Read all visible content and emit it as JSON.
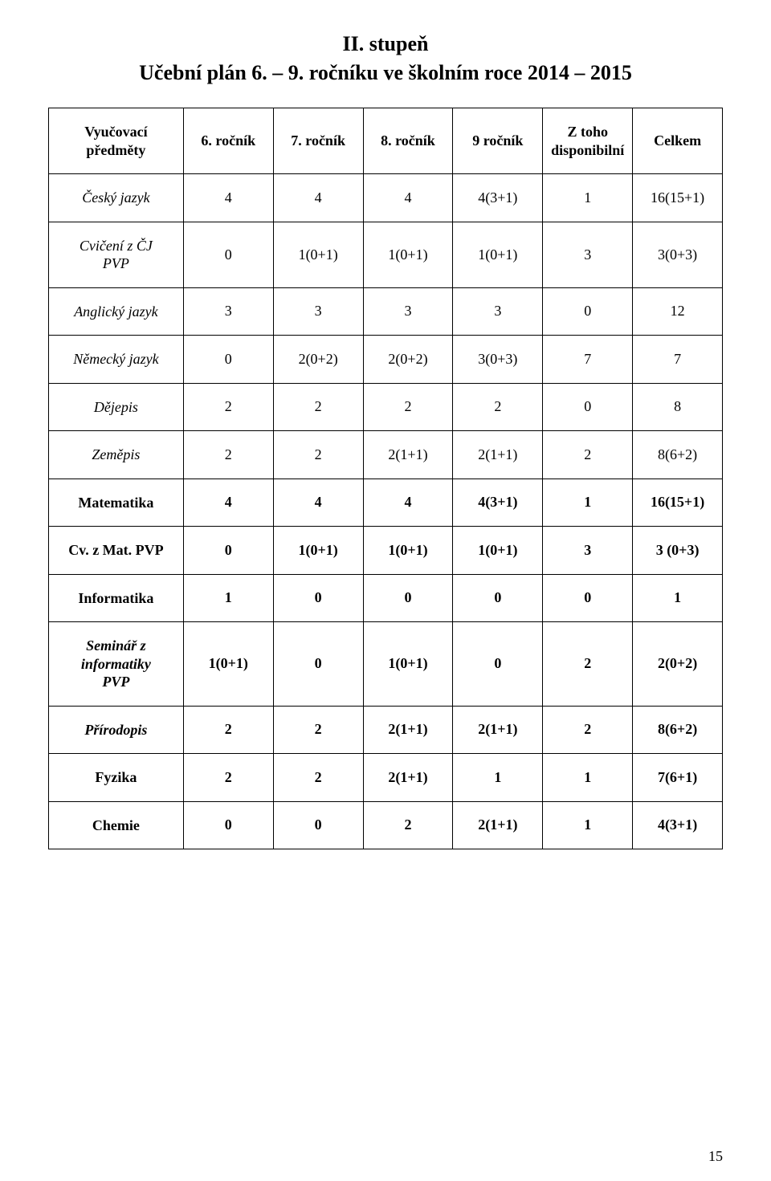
{
  "page": {
    "title": "II. stupeň",
    "subtitle": "Učební plán 6. – 9. ročníku ve školním roce  2014 – 2015",
    "page_number": "15"
  },
  "table": {
    "columns": [
      {
        "label_line1": "Vyučovací",
        "label_line2": "předměty"
      },
      {
        "label": "6. ročník"
      },
      {
        "label": "7. ročník"
      },
      {
        "label": "8. ročník"
      },
      {
        "label": "9 ročník"
      },
      {
        "label_line1": "Z toho",
        "label_line2": "disponibilní"
      },
      {
        "label": "Celkem"
      }
    ],
    "rows": [
      {
        "label": "Český jazyk",
        "italic": true,
        "bold": false,
        "values": [
          "4",
          "4",
          "4",
          "4(3+1)",
          "1",
          "16(15+1)"
        ]
      },
      {
        "label_line1": "Cvičení z ČJ",
        "label_line2": "PVP",
        "italic": true,
        "bold": false,
        "values": [
          "0",
          "1(0+1)",
          "1(0+1)",
          "1(0+1)",
          "3",
          "3(0+3)"
        ]
      },
      {
        "label": "Anglický jazyk",
        "italic": true,
        "bold": false,
        "values": [
          "3",
          "3",
          "3",
          "3",
          "0",
          "12"
        ]
      },
      {
        "label": "Německý jazyk",
        "italic": true,
        "bold": false,
        "values": [
          "0",
          "2(0+2)",
          "2(0+2)",
          "3(0+3)",
          "7",
          "7"
        ]
      },
      {
        "label": "Dějepis",
        "italic": true,
        "bold": false,
        "values": [
          "2",
          "2",
          "2",
          "2",
          "0",
          "8"
        ]
      },
      {
        "label": "Zeměpis",
        "italic": true,
        "bold": false,
        "values": [
          "2",
          "2",
          "2(1+1)",
          "2(1+1)",
          "2",
          "8(6+2)"
        ]
      },
      {
        "label": "Matematika",
        "italic": false,
        "bold": true,
        "values": [
          "4",
          "4",
          "4",
          "4(3+1)",
          "1",
          "16(15+1)"
        ]
      },
      {
        "label": "Cv. z Mat. PVP",
        "italic": false,
        "bold": true,
        "values": [
          "0",
          "1(0+1)",
          "1(0+1)",
          "1(0+1)",
          "3",
          "3 (0+3)"
        ]
      },
      {
        "label": "Informatika",
        "italic": false,
        "bold": true,
        "values": [
          "1",
          "0",
          "0",
          "0",
          "0",
          "1"
        ]
      },
      {
        "label_line1": "Seminář z",
        "label_line2": "informatiky",
        "label_line3": "PVP",
        "italic": true,
        "bold": true,
        "values": [
          "1(0+1)",
          "0",
          "1(0+1)",
          "0",
          "2",
          "2(0+2)"
        ]
      },
      {
        "label": "Přírodopis",
        "italic": true,
        "bold": true,
        "values": [
          "2",
          "2",
          "2(1+1)",
          "2(1+1)",
          "2",
          "8(6+2)"
        ]
      },
      {
        "label": "Fyzika",
        "italic": false,
        "bold": true,
        "values": [
          "2",
          "2",
          "2(1+1)",
          "1",
          "1",
          "7(6+1)"
        ]
      },
      {
        "label": "Chemie",
        "italic": false,
        "bold": true,
        "values": [
          "0",
          "0",
          "2",
          "2(1+1)",
          "1",
          "4(3+1)"
        ]
      }
    ]
  }
}
